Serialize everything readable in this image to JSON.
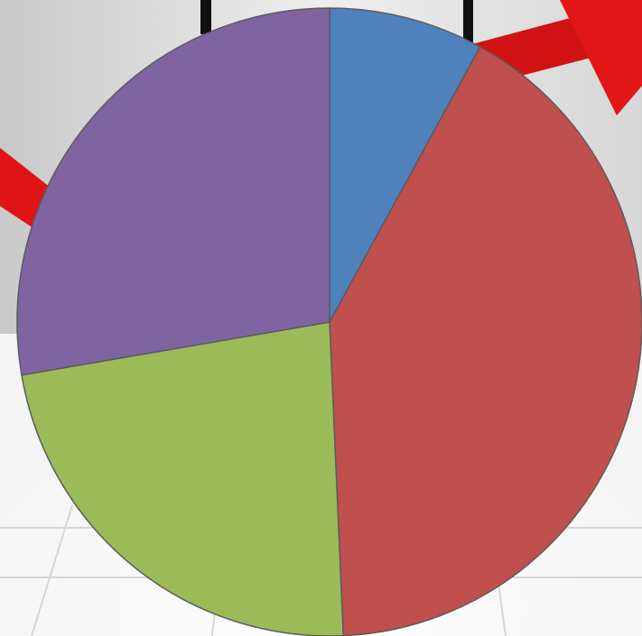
{
  "chart_data": {
    "type": "pie",
    "start_angle_deg": 0,
    "direction": "clockwise",
    "slices": [
      {
        "value": 8.0,
        "color": "#4f81bd"
      },
      {
        "value": 41.3,
        "color": "#c0504d"
      },
      {
        "value": 23.0,
        "color": "#9bbb59"
      },
      {
        "value": 27.7,
        "color": "#8064a2"
      }
    ],
    "background": {
      "arrow_color": "#e01414",
      "floor_color": "#f4f4f4",
      "wall_color": "#d8d8d8"
    }
  }
}
